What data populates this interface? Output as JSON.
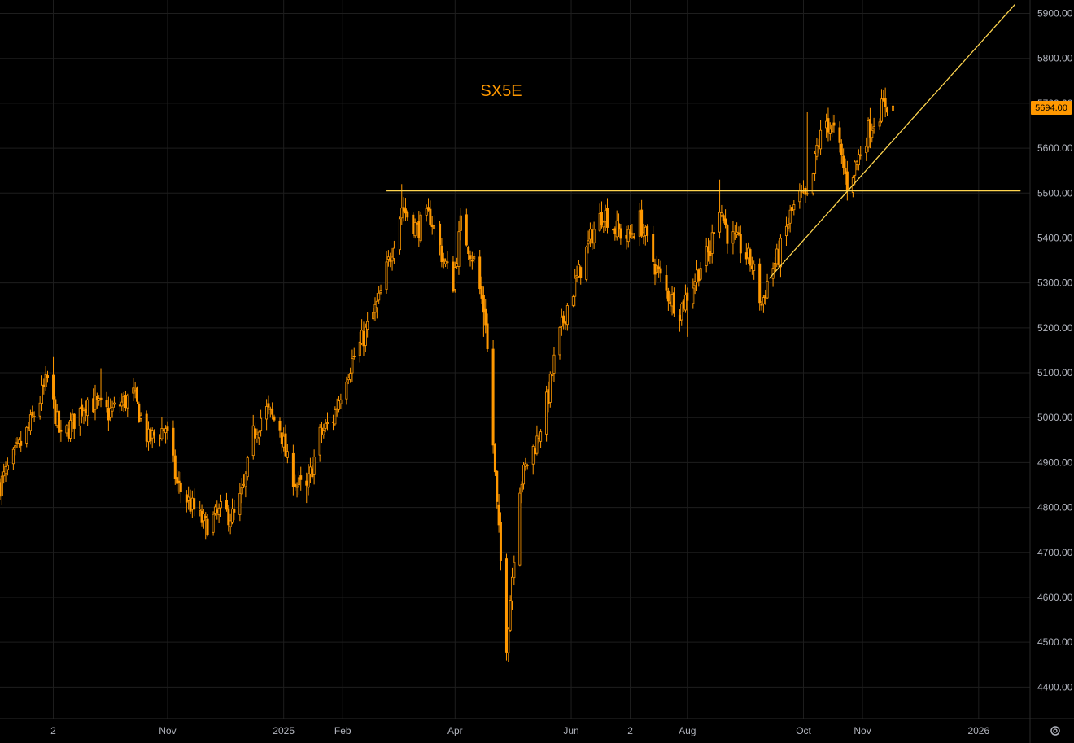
{
  "chart_data": {
    "type": "candlestick",
    "title": "SX5E",
    "y_axis": {
      "ticks": [
        "4400.00",
        "4500.00",
        "4600.00",
        "4700.00",
        "4800.00",
        "4900.00",
        "5000.00",
        "5100.00",
        "5200.00",
        "5300.00",
        "5400.00",
        "5500.00",
        "5600.00",
        "5700.00",
        "5800.00",
        "5900.00"
      ],
      "range": [
        4330,
        5930
      ]
    },
    "x_axis": {
      "ticks": [
        {
          "label": "2",
          "date": "2024-09-02"
        },
        {
          "label": "Nov",
          "date": "2024-11-01"
        },
        {
          "label": "2025",
          "date": "2025-01-01"
        },
        {
          "label": "Feb",
          "date": "2025-02-01"
        },
        {
          "label": "Apr",
          "date": "2025-04-01"
        },
        {
          "label": "Jun",
          "date": "2025-06-01"
        },
        {
          "label": "2",
          "date": "2025-07-02"
        },
        {
          "label": "Aug",
          "date": "2025-08-01"
        },
        {
          "label": "Oct",
          "date": "2025-10-01"
        },
        {
          "label": "Nov",
          "date": "2025-11-01"
        },
        {
          "label": "2026",
          "date": "2026-01-01"
        }
      ],
      "range": [
        "2024-08-05",
        "2026-01-28"
      ]
    },
    "last_price": {
      "label": "5694.00",
      "value": 5694
    },
    "anchors": [
      [
        "2024-08-05",
        4850
      ],
      [
        "2024-08-20",
        4975
      ],
      [
        "2024-08-30",
        5085
      ],
      [
        "2024-09-06",
        4950
      ],
      [
        "2024-09-20",
        5040
      ],
      [
        "2024-10-01",
        5010
      ],
      [
        "2024-10-14",
        5050
      ],
      [
        "2024-10-22",
        4950
      ],
      [
        "2024-10-31",
        4980
      ],
      [
        "2024-11-06",
        4850
      ],
      [
        "2024-11-14",
        4800
      ],
      [
        "2024-11-21",
        4760
      ],
      [
        "2024-11-29",
        4790
      ],
      [
        "2024-12-06",
        4780
      ],
      [
        "2024-12-11",
        4840
      ],
      [
        "2024-12-16",
        4960
      ],
      [
        "2024-12-22",
        5020
      ],
      [
        "2024-12-30",
        4980
      ],
      [
        "2025-01-03",
        4900
      ],
      [
        "2025-01-08",
        4850
      ],
      [
        "2025-01-13",
        4840
      ],
      [
        "2025-01-20",
        4960
      ],
      [
        "2025-01-27",
        5000
      ],
      [
        "2025-02-03",
        5100
      ],
      [
        "2025-02-12",
        5180
      ],
      [
        "2025-02-20",
        5260
      ],
      [
        "2025-02-27",
        5380
      ],
      [
        "2025-03-04",
        5470
      ],
      [
        "2025-03-12",
        5420
      ],
      [
        "2025-03-19",
        5450
      ],
      [
        "2025-03-26",
        5350
      ],
      [
        "2025-03-31",
        5300
      ],
      [
        "2025-04-04",
        5430
      ],
      [
        "2025-04-11",
        5350
      ],
      [
        "2025-04-17",
        5220
      ],
      [
        "2025-04-23",
        4800
      ],
      [
        "2025-04-28",
        4500
      ],
      [
        "2025-05-05",
        4850
      ],
      [
        "2025-05-09",
        4900
      ],
      [
        "2025-05-14",
        4950
      ],
      [
        "2025-05-20",
        5050
      ],
      [
        "2025-05-24",
        5150
      ],
      [
        "2025-05-30",
        5250
      ],
      [
        "2025-06-05",
        5320
      ],
      [
        "2025-06-12",
        5410
      ],
      [
        "2025-06-18",
        5460
      ],
      [
        "2025-06-24",
        5420
      ],
      [
        "2025-07-01",
        5400
      ],
      [
        "2025-07-07",
        5440
      ],
      [
        "2025-07-14",
        5350
      ],
      [
        "2025-07-21",
        5280
      ],
      [
        "2025-07-28",
        5240
      ],
      [
        "2025-08-04",
        5300
      ],
      [
        "2025-08-08",
        5340
      ],
      [
        "2025-08-13",
        5370
      ],
      [
        "2025-08-17",
        5490
      ],
      [
        "2025-08-22",
        5410
      ],
      [
        "2025-08-29",
        5380
      ],
      [
        "2025-09-04",
        5340
      ],
      [
        "2025-09-09",
        5250
      ],
      [
        "2025-09-13",
        5320
      ],
      [
        "2025-09-18",
        5360
      ],
      [
        "2025-09-24",
        5450
      ],
      [
        "2025-09-29",
        5490
      ],
      [
        "2025-10-04",
        5480
      ],
      [
        "2025-10-08",
        5600
      ],
      [
        "2025-10-13",
        5660
      ],
      [
        "2025-10-18",
        5630
      ],
      [
        "2025-10-24",
        5520
      ],
      [
        "2025-10-29",
        5570
      ],
      [
        "2025-11-04",
        5640
      ],
      [
        "2025-11-08",
        5670
      ],
      [
        "2025-11-13",
        5700
      ],
      [
        "2025-11-17",
        5694
      ]
    ],
    "extremes": [
      {
        "date": "2024-09-02",
        "high": 5135
      },
      {
        "date": "2024-09-27",
        "high": 5110
      },
      {
        "date": "2024-11-21",
        "low": 4730
      },
      {
        "date": "2025-01-13",
        "low": 4810
      },
      {
        "date": "2025-03-04",
        "high": 5520
      },
      {
        "date": "2025-04-16",
        "low": 5180
      },
      {
        "date": "2025-04-29",
        "low": 4455
      },
      {
        "date": "2025-08-01",
        "low": 5180
      },
      {
        "date": "2025-08-18",
        "high": 5530
      },
      {
        "date": "2025-09-15",
        "low": 5300
      },
      {
        "date": "2025-10-03",
        "high": 5680
      },
      {
        "date": "2025-10-14",
        "high": 5690
      },
      {
        "date": "2025-10-24",
        "low": 5500
      },
      {
        "date": "2025-11-13",
        "high": 5735
      }
    ],
    "trendlines": [
      {
        "name": "resistance",
        "from": [
          "2025-02-24",
          5505
        ],
        "to": [
          "2026-01-23",
          5505
        ]
      },
      {
        "name": "support",
        "from": [
          "2025-09-13",
          5310
        ],
        "to": [
          "2026-01-20",
          5920
        ]
      }
    ],
    "colors": {
      "candle": "#ff9800",
      "line": "#ffd54f",
      "grid": "#1e1e1e",
      "axis_text": "#b2b5be",
      "background": "#000000"
    }
  },
  "settings_icon": "gear-icon"
}
